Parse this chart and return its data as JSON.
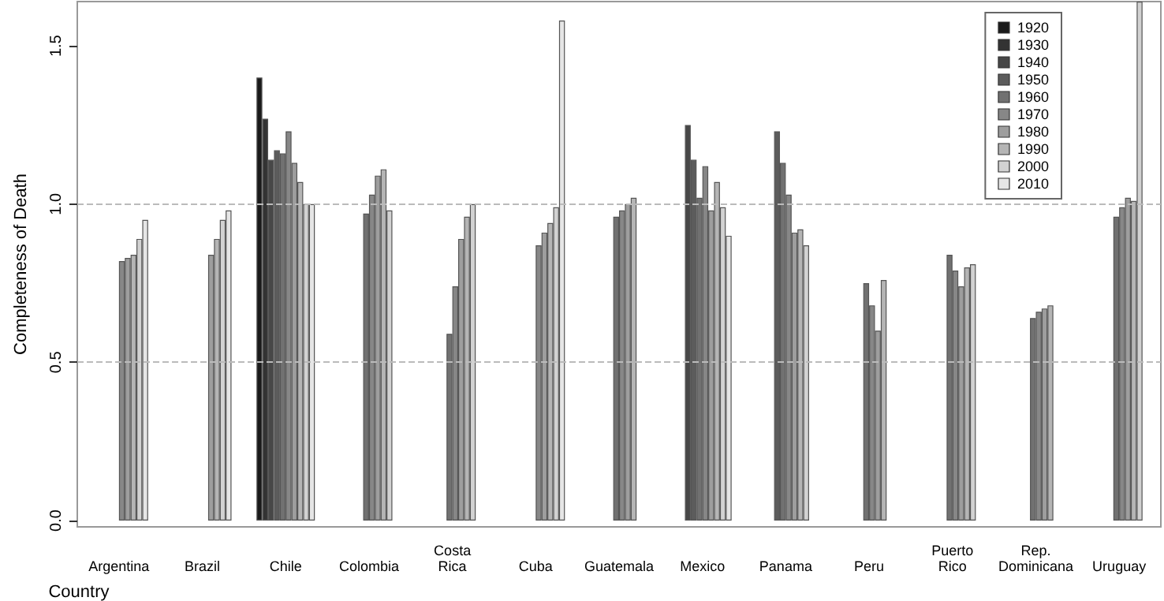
{
  "chart_data": {
    "type": "bar",
    "xlabel": "Country",
    "ylabel": "Completeness of Death",
    "categories": [
      "Argentina",
      "Brazil",
      "Chile",
      "Colombia",
      "Costa Rica",
      "Cuba",
      "Guatemala",
      "Mexico",
      "Panama",
      "Peru",
      "Puerto Rico",
      "Rep. Dominicana",
      "Uruguay"
    ],
    "series": [
      {
        "name": "1920",
        "color": "#1a1a1a",
        "values": [
          null,
          null,
          1.4,
          null,
          null,
          null,
          null,
          null,
          null,
          null,
          null,
          null,
          null
        ]
      },
      {
        "name": "1930",
        "color": "#333333",
        "values": [
          null,
          null,
          1.27,
          null,
          null,
          null,
          null,
          null,
          null,
          null,
          null,
          null,
          null
        ]
      },
      {
        "name": "1940",
        "color": "#474747",
        "values": [
          null,
          null,
          1.14,
          null,
          null,
          null,
          null,
          1.25,
          null,
          null,
          null,
          null,
          null
        ]
      },
      {
        "name": "1950",
        "color": "#5c5c5c",
        "values": [
          null,
          null,
          1.17,
          null,
          null,
          null,
          null,
          1.14,
          1.23,
          null,
          null,
          null,
          null
        ]
      },
      {
        "name": "1960",
        "color": "#717171",
        "values": [
          null,
          null,
          1.16,
          0.97,
          0.59,
          null,
          0.96,
          1.02,
          1.13,
          0.75,
          0.84,
          0.64,
          0.96
        ]
      },
      {
        "name": "1970",
        "color": "#878787",
        "values": [
          0.82,
          null,
          1.23,
          1.03,
          0.74,
          0.87,
          0.98,
          1.12,
          1.03,
          0.68,
          0.79,
          0.66,
          0.99
        ]
      },
      {
        "name": "1980",
        "color": "#9e9e9e",
        "values": [
          0.83,
          0.84,
          1.13,
          1.09,
          0.89,
          0.91,
          1.0,
          0.98,
          0.91,
          0.6,
          0.74,
          0.67,
          1.02
        ]
      },
      {
        "name": "1990",
        "color": "#b5b5b5",
        "values": [
          0.84,
          0.89,
          1.07,
          1.11,
          0.96,
          0.94,
          1.02,
          1.07,
          0.92,
          0.76,
          0.8,
          0.68,
          1.01
        ]
      },
      {
        "name": "2000",
        "color": "#d2d2d2",
        "values": [
          0.89,
          0.95,
          1.0,
          0.98,
          1.0,
          0.99,
          null,
          0.99,
          0.87,
          null,
          0.81,
          null,
          1.64
        ]
      },
      {
        "name": "2010",
        "color": "#e6e6e6",
        "values": [
          0.95,
          0.98,
          1.0,
          null,
          null,
          1.58,
          null,
          0.9,
          null,
          null,
          null,
          null,
          null
        ]
      }
    ],
    "ylim": [
      -0.02,
      1.64
    ],
    "yticks": [
      {
        "value": 0,
        "label": "0.0"
      },
      {
        "value": 0.5,
        "label": "0.5"
      },
      {
        "value": 1,
        "label": "1.0"
      },
      {
        "value": 1.5,
        "label": "1.5"
      }
    ],
    "ref_lines": [
      {
        "axis": "y",
        "value": 0.5,
        "color": "#bbbbbb",
        "line_style": "dashed"
      },
      {
        "axis": "y",
        "value": 1,
        "color": "#bbbbbb",
        "line_style": "dashed"
      }
    ],
    "legend": "top right",
    "grid": false
  }
}
